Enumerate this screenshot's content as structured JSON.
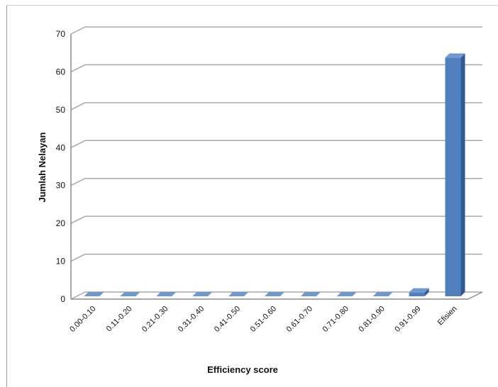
{
  "chart_data": {
    "type": "bar",
    "title": "",
    "xlabel": "Efficiency score",
    "ylabel": "Jumlah Nelayan",
    "categories": [
      "0.00-0.10",
      "0.11-0.20",
      "0.21-0.30",
      "0.31-0.40",
      "0.41-0.50",
      "0.51-0.60",
      "0.61-0.70",
      "0.71-0.80",
      "0.81-0.90",
      "0.91-0.99",
      "Efisien"
    ],
    "values": [
      0,
      0,
      0,
      0,
      0,
      0,
      0,
      0,
      0,
      1,
      63
    ],
    "ylim": [
      0,
      70
    ],
    "yticks": [
      "0",
      "10",
      "20",
      "30",
      "40",
      "50",
      "60",
      "70"
    ],
    "grid": true,
    "legend": "none",
    "colors": {
      "bar_front": "#4f7fbf",
      "bar_side": "#2f5a94",
      "bar_top": "#6f98d0",
      "grid": "#a8a8a8"
    }
  }
}
